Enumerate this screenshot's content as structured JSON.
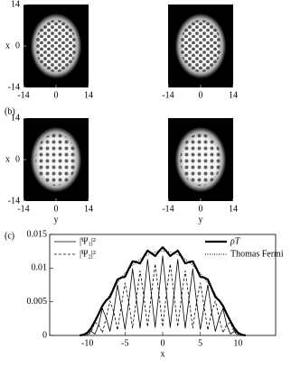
{
  "chart_data": [
    {
      "type": "image",
      "xlim": [
        -14,
        14
      ],
      "ylim": [
        -14,
        14
      ],
      "xticks": [
        -14,
        0,
        14
      ],
      "yticks": [
        -14,
        0,
        14
      ],
      "ylabel": "x"
    },
    {
      "type": "image",
      "xlim": [
        -14,
        14
      ],
      "ylim": [
        -14,
        14
      ],
      "xticks": [
        -14,
        0,
        14
      ]
    },
    {
      "type": "image",
      "label": "(b)",
      "xlim": [
        -14,
        14
      ],
      "ylim": [
        -14,
        14
      ],
      "xticks": [
        -14,
        0,
        14
      ],
      "yticks": [
        -14,
        0,
        14
      ],
      "xlabel": "y",
      "ylabel": "x"
    },
    {
      "type": "image",
      "xlim": [
        -14,
        14
      ],
      "ylim": [
        -14,
        14
      ],
      "xticks": [
        -14,
        0,
        14
      ],
      "xlabel": "y"
    },
    {
      "type": "line",
      "label": "(c)",
      "xlabel": "x",
      "x": [
        -11,
        -10.5,
        -10,
        -9.5,
        -9,
        -8.5,
        -8,
        -7.5,
        -7,
        -6.5,
        -6,
        -5.5,
        -5,
        -4.5,
        -4,
        -3.5,
        -3,
        -2.5,
        -2,
        -1.5,
        -1,
        -0.5,
        0,
        0.5,
        1,
        1.5,
        2,
        2.5,
        3,
        3.5,
        4,
        4.5,
        5,
        5.5,
        6,
        6.5,
        7,
        7.5,
        8,
        8.5,
        9,
        9.5,
        10,
        10.5,
        11
      ],
      "series": [
        {
          "name": "|Ψ₁|²",
          "color": "#000000",
          "style": "solid",
          "width": 0.8,
          "values": [
            0,
            0.0001,
            0.0004,
            0.0006,
            0.0002,
            0.0016,
            0.004,
            0.0026,
            0.0006,
            0.0035,
            0.0075,
            0.0043,
            0.0009,
            0.005,
            0.0099,
            0.0055,
            0.0011,
            0.0059,
            0.0113,
            0.0061,
            0.0012,
            0.0063,
            0.0118,
            0.0063,
            0.0012,
            0.0061,
            0.0113,
            0.0059,
            0.0011,
            0.0055,
            0.0099,
            0.005,
            0.0009,
            0.0043,
            0.0075,
            0.0035,
            0.0006,
            0.0026,
            0.004,
            0.0016,
            0.0002,
            0.0006,
            0.0004,
            0.0001,
            0
          ]
        },
        {
          "name": "|Ψ₂|²",
          "color": "#000000",
          "style": "dashed",
          "width": 0.8,
          "values": [
            0,
            0,
            0,
            0.0005,
            0.0019,
            0.0016,
            0.0004,
            0.0026,
            0.0051,
            0.0035,
            0.0008,
            0.0043,
            0.0078,
            0.0049,
            0.0011,
            0.0054,
            0.0096,
            0.0058,
            0.0013,
            0.0061,
            0.0106,
            0.0062,
            0.0013,
            0.0062,
            0.0106,
            0.0061,
            0.0013,
            0.0058,
            0.0096,
            0.0054,
            0.0011,
            0.0049,
            0.0078,
            0.0043,
            0.0008,
            0.0035,
            0.0051,
            0.0026,
            0.0004,
            0.0016,
            0.0019,
            0.0005,
            0,
            0,
            0
          ]
        },
        {
          "name": "ρT",
          "color": "#000000",
          "style": "solid",
          "width": 2.2,
          "values": [
            0,
            0.0001,
            0.0004,
            0.0011,
            0.0021,
            0.0032,
            0.0044,
            0.0052,
            0.0057,
            0.007,
            0.0083,
            0.0086,
            0.0087,
            0.0099,
            0.011,
            0.0109,
            0.0107,
            0.0117,
            0.0126,
            0.0122,
            0.0118,
            0.0125,
            0.0131,
            0.0125,
            0.0118,
            0.0122,
            0.0126,
            0.0117,
            0.0107,
            0.0109,
            0.011,
            0.0099,
            0.0087,
            0.0086,
            0.0083,
            0.007,
            0.0057,
            0.0052,
            0.0044,
            0.0032,
            0.0021,
            0.0011,
            0.0004,
            0.0001,
            0
          ]
        },
        {
          "name": "Thomas Fermi",
          "color": "#000000",
          "style": "dotted",
          "width": 0.9,
          "values": [
            0,
            0,
            0,
            0.00075,
            0.00196,
            0.0031,
            0.00417,
            0.00518,
            0.00612,
            0.007,
            0.00781,
            0.00856,
            0.00925,
            0.00986,
            0.01042,
            0.01091,
            0.01133,
            0.01169,
            0.01198,
            0.01221,
            0.01237,
            0.01247,
            0.0125,
            0.01247,
            0.01237,
            0.01221,
            0.01198,
            0.01169,
            0.01133,
            0.01091,
            0.01042,
            0.00986,
            0.00925,
            0.00856,
            0.00781,
            0.007,
            0.00612,
            0.00518,
            0.00417,
            0.0031,
            0.00196,
            0.00075,
            0,
            0,
            0
          ]
        }
      ],
      "xlim": [
        -15,
        15
      ],
      "ylim": [
        0,
        0.015
      ],
      "xticks": [
        -10,
        -5,
        0,
        5,
        10
      ],
      "yticks": [
        0,
        0.005,
        0.01,
        0.015
      ]
    }
  ]
}
